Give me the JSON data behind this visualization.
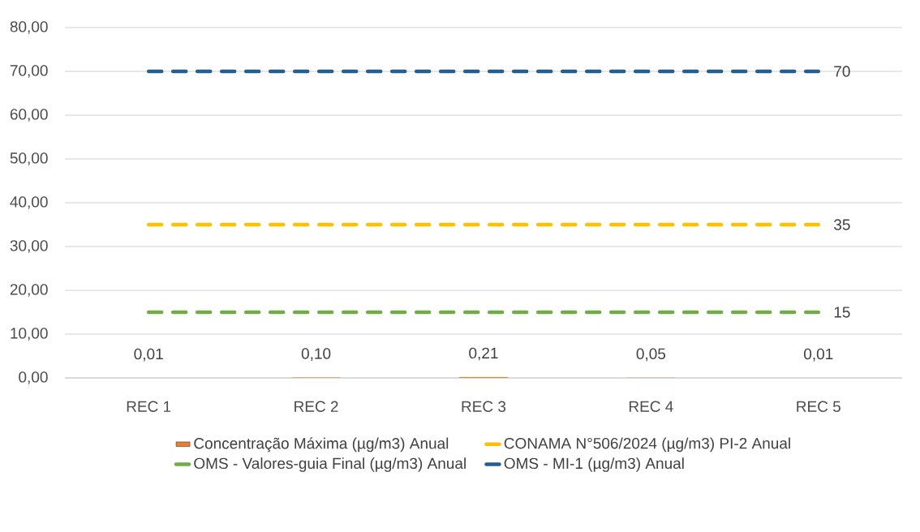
{
  "chart_data": {
    "type": "bar",
    "categories": [
      "REC 1",
      "REC 2",
      "REC 3",
      "REC 4",
      "REC 5"
    ],
    "series": [
      {
        "name": "Concentração Máxima (µg/m3) Anual",
        "color": "#ed7d31",
        "values": [
          0.01,
          0.1,
          0.21,
          0.05,
          0.01
        ],
        "value_labels": [
          "0,01",
          "0,10",
          "0,21",
          "0,05",
          "0,01"
        ]
      },
      {
        "name": "CONAMA N°506/2024 (µg/m3) PI-2 Anual",
        "type": "line",
        "line_style": "dashed",
        "color": "#ffc000",
        "values": [
          35,
          35,
          35,
          35,
          35
        ],
        "value_labels": [
          null,
          null,
          null,
          null,
          "35"
        ]
      },
      {
        "name": "OMS - Valores-guia Final (µg/m3) Anual",
        "type": "line",
        "line_style": "dashed",
        "color": "#70ad47",
        "values": [
          15,
          15,
          15,
          15,
          15
        ],
        "value_labels": [
          null,
          null,
          null,
          null,
          "15"
        ]
      },
      {
        "name": "OMS - MI-1 (µg/m3) Anual",
        "type": "line",
        "line_style": "dashed",
        "color": "#255e91",
        "values": [
          70,
          70,
          70,
          70,
          70
        ],
        "value_labels": [
          null,
          null,
          null,
          null,
          "70"
        ]
      }
    ],
    "ylim": [
      0,
      80
    ],
    "yticks": [
      {
        "value": 0,
        "label": "0,00"
      },
      {
        "value": 10,
        "label": "10,00"
      },
      {
        "value": 20,
        "label": "20,00"
      },
      {
        "value": 30,
        "label": "30,00"
      },
      {
        "value": 40,
        "label": "40,00"
      },
      {
        "value": 50,
        "label": "50,00"
      },
      {
        "value": 60,
        "label": "60,00"
      },
      {
        "value": 70,
        "label": "70,00"
      },
      {
        "value": 80,
        "label": "80,00"
      }
    ],
    "grid": "y",
    "legend": "bottom"
  }
}
